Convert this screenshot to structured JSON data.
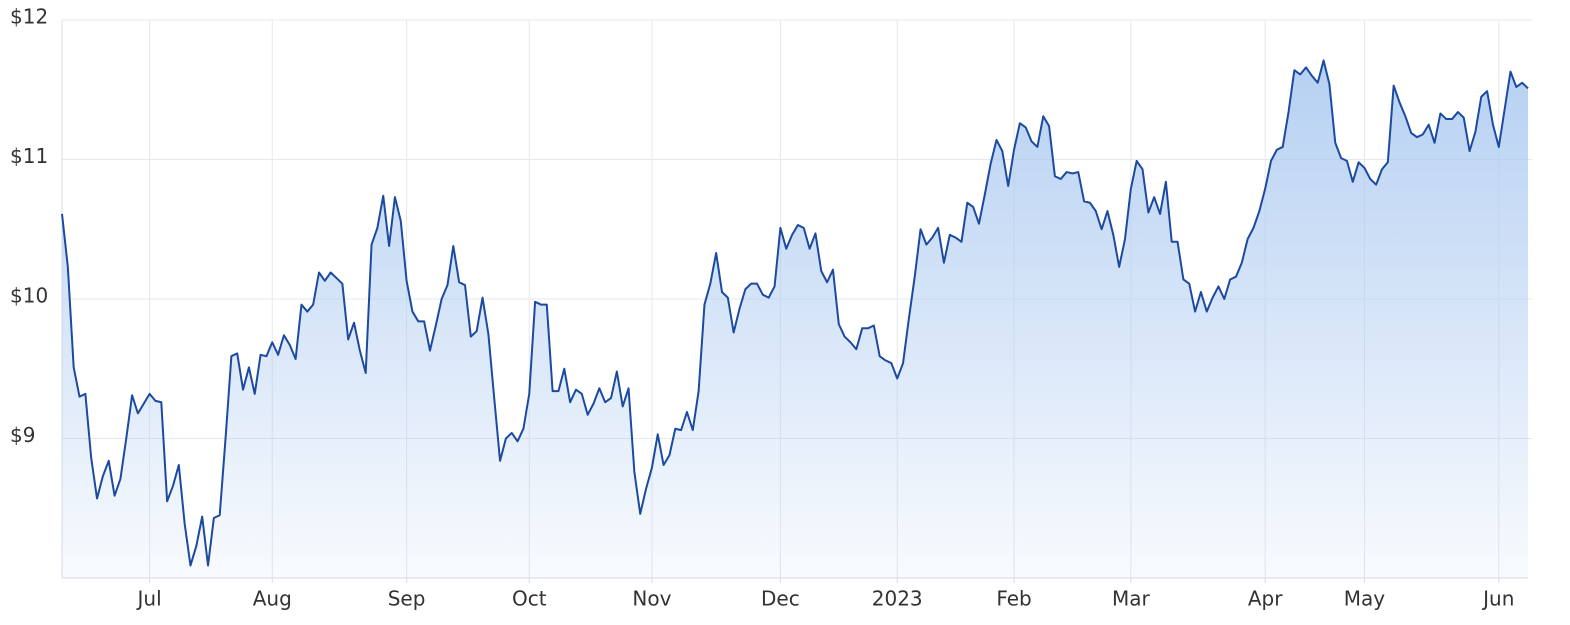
{
  "chart_data": {
    "type": "line",
    "categories": [
      null,
      null,
      null,
      null,
      null,
      null,
      null,
      null,
      null,
      null,
      null,
      null,
      null,
      null,
      null,
      "Jul",
      null,
      null,
      null,
      null,
      null,
      null,
      null,
      null,
      null,
      null,
      null,
      null,
      null,
      null,
      null,
      null,
      null,
      null,
      null,
      null,
      "Aug",
      null,
      null,
      null,
      null,
      null,
      null,
      null,
      null,
      null,
      null,
      null,
      null,
      null,
      null,
      null,
      null,
      null,
      null,
      null,
      null,
      null,
      null,
      "Sep",
      null,
      null,
      null,
      null,
      null,
      null,
      null,
      null,
      null,
      null,
      null,
      null,
      null,
      null,
      null,
      null,
      null,
      null,
      null,
      null,
      "Oct",
      null,
      null,
      null,
      null,
      null,
      null,
      null,
      null,
      null,
      null,
      null,
      null,
      null,
      null,
      null,
      null,
      null,
      null,
      null,
      null,
      "Nov",
      null,
      null,
      null,
      null,
      null,
      null,
      null,
      null,
      null,
      null,
      null,
      null,
      null,
      null,
      null,
      null,
      null,
      null,
      null,
      null,
      null,
      "Dec",
      null,
      null,
      null,
      null,
      null,
      null,
      null,
      null,
      null,
      null,
      null,
      null,
      null,
      null,
      null,
      null,
      null,
      null,
      null,
      "2023",
      null,
      null,
      null,
      null,
      null,
      null,
      null,
      null,
      null,
      null,
      null,
      null,
      null,
      null,
      null,
      null,
      null,
      null,
      null,
      "Feb",
      null,
      null,
      null,
      null,
      null,
      null,
      null,
      null,
      null,
      null,
      null,
      null,
      null,
      null,
      null,
      null,
      null,
      null,
      null,
      "Mar",
      null,
      null,
      null,
      null,
      null,
      null,
      null,
      null,
      null,
      null,
      null,
      null,
      null,
      null,
      null,
      null,
      null,
      null,
      null,
      null,
      null,
      null,
      "Apr",
      null,
      null,
      null,
      null,
      null,
      null,
      null,
      null,
      null,
      null,
      null,
      null,
      null,
      null,
      null,
      null,
      "May",
      null,
      null,
      null,
      null,
      null,
      null,
      null,
      null,
      null,
      null,
      null,
      null,
      null,
      null,
      null,
      null,
      null,
      null,
      null,
      null,
      null,
      null,
      "Jun",
      null,
      null,
      null,
      null,
      null
    ],
    "values": [
      10.61,
      10.23,
      9.51,
      9.3,
      9.32,
      8.86,
      8.57,
      8.73,
      8.84,
      8.59,
      8.71,
      9.0,
      9.31,
      9.18,
      9.25,
      9.32,
      9.27,
      9.26,
      8.55,
      8.66,
      8.81,
      8.39,
      8.09,
      8.23,
      8.44,
      8.09,
      8.43,
      8.45,
      9.0,
      9.59,
      9.61,
      9.35,
      9.51,
      9.32,
      9.6,
      9.59,
      9.69,
      9.6,
      9.74,
      9.67,
      9.57,
      9.96,
      9.91,
      9.96,
      10.19,
      10.13,
      10.19,
      10.15,
      10.11,
      9.71,
      9.83,
      9.63,
      9.47,
      10.39,
      10.51,
      10.74,
      10.38,
      10.73,
      10.56,
      10.13,
      9.91,
      9.84,
      9.84,
      9.63,
      9.81,
      10.0,
      10.1,
      10.38,
      10.12,
      10.1,
      9.73,
      9.77,
      10.01,
      9.75,
      9.29,
      8.84,
      9.0,
      9.04,
      8.98,
      9.07,
      9.32,
      9.98,
      9.96,
      9.96,
      9.34,
      9.34,
      9.5,
      9.26,
      9.35,
      9.32,
      9.17,
      9.25,
      9.36,
      9.26,
      9.29,
      9.48,
      9.23,
      9.36,
      8.76,
      8.46,
      8.64,
      8.79,
      9.03,
      8.81,
      8.88,
      9.07,
      9.06,
      9.19,
      9.06,
      9.34,
      9.96,
      10.11,
      10.33,
      10.05,
      10.01,
      9.76,
      9.93,
      10.07,
      10.11,
      10.11,
      10.03,
      10.01,
      10.09,
      10.51,
      10.36,
      10.46,
      10.53,
      10.51,
      10.36,
      10.47,
      10.2,
      10.12,
      10.21,
      9.82,
      9.73,
      9.69,
      9.64,
      9.79,
      9.79,
      9.81,
      9.59,
      9.56,
      9.54,
      9.43,
      9.54,
      9.86,
      10.16,
      10.5,
      10.39,
      10.44,
      10.51,
      10.26,
      10.46,
      10.44,
      10.41,
      10.69,
      10.66,
      10.54,
      10.75,
      10.97,
      11.14,
      11.06,
      10.81,
      11.07,
      11.26,
      11.23,
      11.13,
      11.09,
      11.31,
      11.24,
      10.88,
      10.86,
      10.91,
      10.9,
      10.91,
      10.7,
      10.69,
      10.63,
      10.5,
      10.63,
      10.46,
      10.23,
      10.43,
      10.79,
      10.99,
      10.93,
      10.62,
      10.73,
      10.61,
      10.84,
      10.41,
      10.41,
      10.14,
      10.11,
      9.91,
      10.05,
      9.91,
      10.01,
      10.09,
      10.0,
      10.14,
      10.16,
      10.26,
      10.43,
      10.51,
      10.63,
      10.79,
      10.99,
      11.07,
      11.09,
      11.34,
      11.64,
      11.61,
      11.66,
      11.6,
      11.55,
      11.71,
      11.54,
      11.12,
      11.01,
      10.99,
      10.84,
      10.98,
      10.94,
      10.86,
      10.82,
      10.93,
      10.98,
      11.53,
      11.41,
      11.31,
      11.19,
      11.16,
      11.18,
      11.25,
      11.12,
      11.33,
      11.29,
      11.29,
      11.34,
      11.3,
      11.06,
      11.2,
      11.45,
      11.49,
      11.25,
      11.09,
      11.36,
      11.63,
      11.52,
      11.55,
      11.51
    ],
    "color": "#1b4aa0",
    "fill_color": "#a9c8f0",
    "ylim": [
      8,
      12
    ],
    "yticks": [
      {
        "value": 9,
        "label": "$9"
      },
      {
        "value": 10,
        "label": "$10"
      },
      {
        "value": 11,
        "label": "$11"
      },
      {
        "value": 12,
        "label": "$12"
      }
    ],
    "grid": true
  }
}
